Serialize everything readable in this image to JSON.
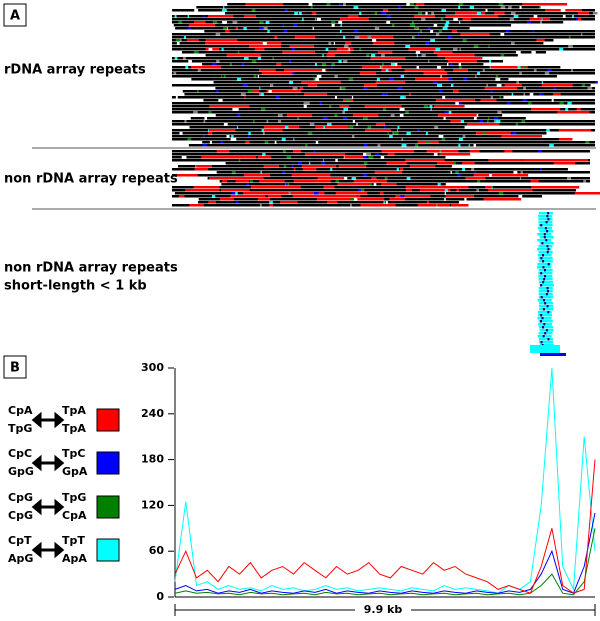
{
  "panel_a": {
    "label": "A",
    "groups": [
      {
        "label": [
          "rDNA array repeats"
        ]
      },
      {
        "label": [
          "non rDNA array repeats"
        ]
      },
      {
        "label": [
          "non rDNA array repeats",
          "short-length < 1 kb"
        ]
      }
    ]
  },
  "chart_data": {
    "type": "line",
    "panel_label": "B",
    "x_span_label": "9.9 kb",
    "ylim": [
      0,
      300
    ],
    "yticks": [
      0,
      60,
      120,
      180,
      240,
      300
    ],
    "series": [
      {
        "from": [
          "CpA",
          "TpG"
        ],
        "to": [
          "TpA",
          "TpA"
        ],
        "color": "#ff0000",
        "values": [
          30,
          60,
          25,
          35,
          20,
          40,
          30,
          45,
          25,
          35,
          40,
          30,
          45,
          35,
          25,
          40,
          30,
          35,
          45,
          30,
          25,
          40,
          35,
          30,
          45,
          35,
          40,
          30,
          25,
          20,
          10,
          15,
          10,
          5,
          40,
          90,
          15,
          5,
          10,
          180
        ]
      },
      {
        "from": [
          "CpC",
          "GpG"
        ],
        "to": [
          "TpC",
          "GpA"
        ],
        "color": "#0000ff",
        "values": [
          10,
          15,
          8,
          10,
          5,
          8,
          6,
          10,
          5,
          8,
          6,
          5,
          8,
          6,
          10,
          5,
          8,
          6,
          5,
          8,
          6,
          5,
          8,
          6,
          5,
          8,
          6,
          5,
          8,
          6,
          5,
          8,
          6,
          10,
          30,
          60,
          10,
          5,
          40,
          110
        ]
      },
      {
        "from": [
          "CpG",
          "CpG"
        ],
        "to": [
          "TpG",
          "CpA"
        ],
        "color": "#008000",
        "values": [
          5,
          8,
          5,
          6,
          4,
          5,
          3,
          6,
          4,
          5,
          3,
          4,
          5,
          3,
          6,
          4,
          5,
          3,
          4,
          5,
          3,
          4,
          5,
          3,
          4,
          5,
          3,
          4,
          5,
          3,
          4,
          5,
          3,
          5,
          15,
          30,
          5,
          3,
          20,
          90
        ]
      },
      {
        "from": [
          "CpT",
          "ApG"
        ],
        "to": [
          "TpT",
          "ApA"
        ],
        "color": "#00ffff",
        "values": [
          20,
          125,
          15,
          20,
          10,
          15,
          10,
          12,
          8,
          15,
          10,
          12,
          8,
          10,
          15,
          10,
          12,
          8,
          10,
          12,
          10,
          8,
          12,
          10,
          8,
          15,
          10,
          12,
          10,
          8,
          5,
          15,
          10,
          20,
          120,
          300,
          40,
          10,
          210,
          60
        ]
      }
    ]
  }
}
